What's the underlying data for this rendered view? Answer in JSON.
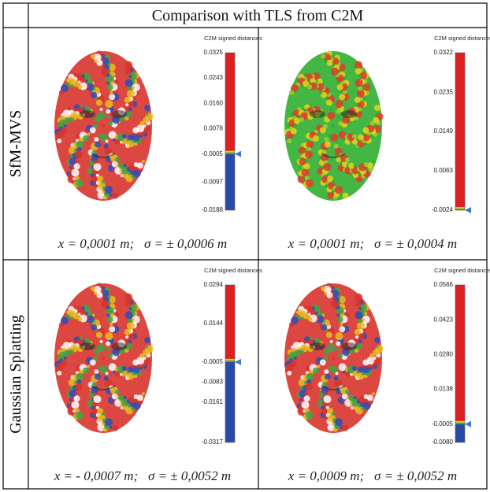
{
  "header": {
    "title": "Comparison with TLS from C2M"
  },
  "rows": [
    {
      "label": "SfM-MVS",
      "cells": [
        {
          "scale_title": "C2M signed distances",
          "ticks": [
            "0.0325",
            "0.0243",
            "0.0160",
            "0.0078",
            "-0.0005",
            "-0.0097",
            "-0.0188"
          ],
          "caption": "x = 0,0001 m;   σ = ± 0,0006 m"
        },
        {
          "scale_title": "C2M signed distances",
          "ticks": [
            "0.0322",
            "0.0235",
            "0.0149",
            "0.0063",
            "-0.0024"
          ],
          "caption": "x = 0,0001 m;   σ = ± 0,0004 m"
        }
      ]
    },
    {
      "label": "Gaussian Splatting",
      "cells": [
        {
          "scale_title": "C2M signed distances",
          "ticks": [
            "0.0294",
            "0.0144",
            "-0.0005",
            "-0.0083",
            "-0.0161",
            "-0.0317"
          ],
          "caption": "x = - 0,0007 m;   σ = ± 0,0052 m"
        },
        {
          "scale_title": "C2M signed distances",
          "ticks": [
            "0.0566",
            "0.0423",
            "0.0280",
            "0.0138",
            "-0.0005",
            "-0.0080"
          ],
          "caption": "x = 0,0009 m;   σ = ± 0,0052 m"
        }
      ]
    }
  ]
}
